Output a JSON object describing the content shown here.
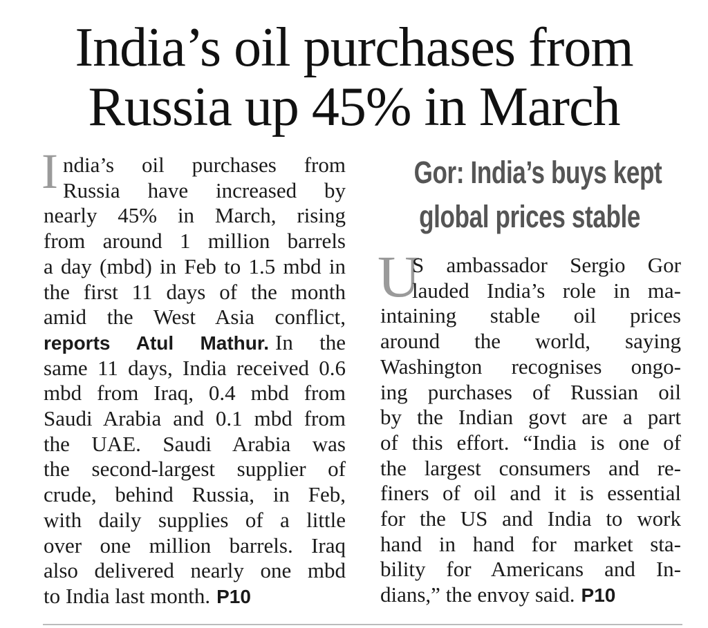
{
  "headline": [
    "India’s oil purchases from",
    "Russia up 45% in March"
  ],
  "left": {
    "drop_cap": "I",
    "lines": [
      [
        "ndia’s oil purchases from"
      ],
      [
        "Russia have increased by"
      ],
      [
        "nearly 45% in March, rising"
      ],
      [
        "from around 1 million barrels"
      ],
      [
        "a day (mbd) in Feb to 1.5 mbd in"
      ],
      [
        "the first 11 days of the month"
      ],
      [
        "amid the West Asia conflict,"
      ],
      [
        {
          "bold": "reports Atul Mathur."
        },
        "In the"
      ],
      [
        "same 11 days, India received 0.6"
      ],
      [
        "mbd from Iraq, 0.4 mbd from"
      ],
      [
        "Saudi Arabia and 0.1 mbd from"
      ],
      [
        "the UAE. Saudi Arabia was"
      ],
      [
        "the second-largest supplier of"
      ],
      [
        "crude, behind Russia, in Feb,"
      ],
      [
        "with daily supplies of a little"
      ],
      [
        "over one million barrels. Iraq"
      ],
      [
        "also delivered nearly one mbd"
      ],
      [
        "to India last month.",
        {
          "bold": "P10"
        }
      ]
    ]
  },
  "right": {
    "subhead": [
      "Gor: India’s buys kept",
      "global prices stable"
    ],
    "drop_cap": "U",
    "lines": [
      [
        "S ambassador Sergio Gor"
      ],
      [
        "lauded India’s role in ma-"
      ],
      [
        "intaining stable oil prices"
      ],
      [
        "around the world, saying"
      ],
      [
        "Washington recognises ongo-"
      ],
      [
        "ing purchases of Russian oil"
      ],
      [
        "by the Indian govt are a part"
      ],
      [
        "of this effort. “India is one of"
      ],
      [
        "the largest consumers and re-"
      ],
      [
        "finers of oil and it is essential"
      ],
      [
        "for the US and India to work"
      ],
      [
        "hand in hand for market sta-"
      ],
      [
        "bility for Americans and In-"
      ],
      [
        "dians,” the envoy said.",
        {
          "bold": "P10"
        }
      ]
    ]
  }
}
